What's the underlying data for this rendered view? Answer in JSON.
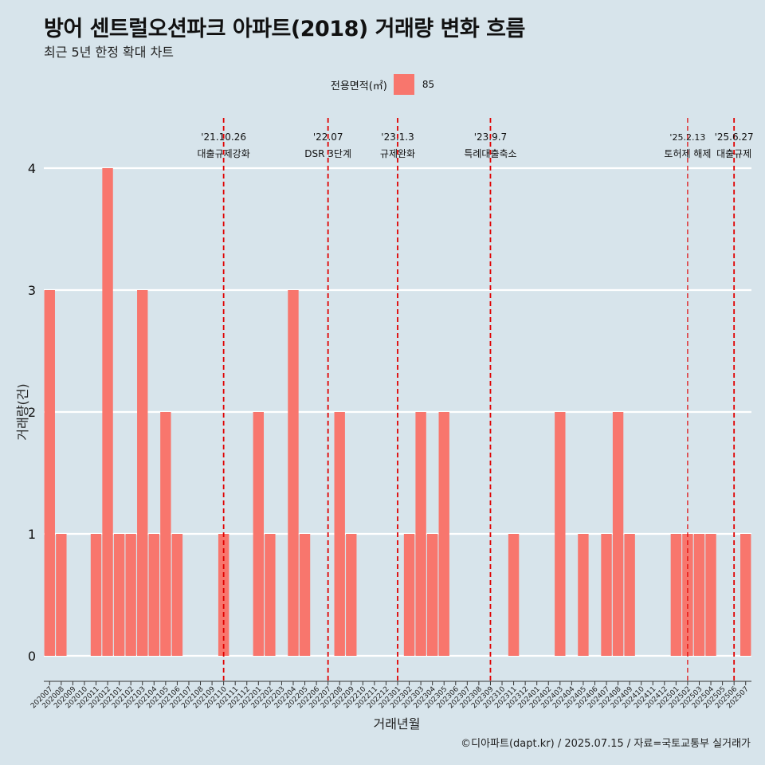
{
  "title": "방어 센트럴오션파크 아파트(2018) 거래량 변화 흐름",
  "subtitle": "최근 5년 한정 확대 차트",
  "credit": "©디아파트(dapt.kr) / 2025.07.15 / 자료=국토교통부 실거래가",
  "legend": {
    "title": "전용면적(㎡)",
    "label": "85",
    "color": "#f8766d"
  },
  "colors": {
    "bar": "#f8766d",
    "background": "#d7e4eb",
    "grid": "#ffffff",
    "event_line": "#e00000"
  },
  "chart_data": {
    "type": "bar",
    "xlabel": "거래년월",
    "ylabel": "거래량(건)",
    "ylim": [
      0,
      4
    ],
    "yticks": [
      0,
      1,
      2,
      3,
      4
    ],
    "grid": true,
    "legend_position": "top",
    "categories": [
      "202007",
      "202008",
      "202009",
      "202010",
      "202011",
      "202012",
      "202101",
      "202102",
      "202103",
      "202104",
      "202105",
      "202106",
      "202107",
      "202108",
      "202109",
      "202110",
      "202111",
      "202112",
      "202201",
      "202202",
      "202203",
      "202204",
      "202205",
      "202206",
      "202207",
      "202208",
      "202209",
      "202210",
      "202211",
      "202212",
      "202301",
      "202302",
      "202303",
      "202304",
      "202305",
      "202306",
      "202307",
      "202308",
      "202309",
      "202310",
      "202311",
      "202312",
      "202401",
      "202402",
      "202403",
      "202404",
      "202405",
      "202406",
      "202407",
      "202408",
      "202409",
      "202410",
      "202411",
      "202412",
      "202501",
      "202502",
      "202503",
      "202504",
      "202505",
      "202506",
      "202507"
    ],
    "series": [
      {
        "name": "85",
        "values": [
          3,
          1,
          0,
          0,
          1,
          4,
          1,
          1,
          3,
          1,
          2,
          1,
          0,
          0,
          0,
          1,
          0,
          0,
          2,
          1,
          0,
          3,
          1,
          0,
          0,
          2,
          1,
          0,
          0,
          0,
          0,
          1,
          2,
          1,
          2,
          0,
          0,
          0,
          0,
          0,
          1,
          0,
          0,
          0,
          2,
          0,
          1,
          0,
          1,
          2,
          1,
          0,
          0,
          0,
          1,
          1,
          1,
          1,
          0,
          0,
          1
        ]
      }
    ],
    "events": [
      {
        "date": "'21.10.26",
        "label": "대출규제강화",
        "at": "202110"
      },
      {
        "date": "'22.07",
        "label": "DSR 3단계",
        "at": "202207"
      },
      {
        "date": "'23.1.3",
        "label": "규제완화",
        "at": "202301"
      },
      {
        "date": "'23.9.7",
        "label": "특례대출축소",
        "at": "202309"
      },
      {
        "date": "'25.2.13",
        "label": "토허제 해제",
        "at": "202502"
      },
      {
        "date": "'25.6.27",
        "label": "대출규제",
        "at": "202506"
      }
    ]
  }
}
